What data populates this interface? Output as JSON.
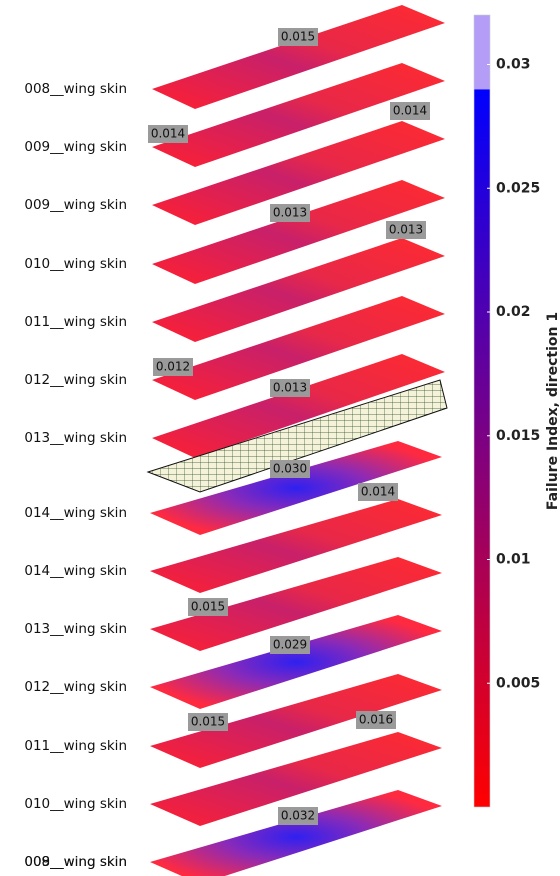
{
  "layers": [
    {
      "label": "008__wing skin",
      "annotation": "0.015"
    },
    {
      "label": "009__wing skin",
      "annotation": "0.014"
    },
    {
      "label": "009__wing skin",
      "annotation": "0.014"
    },
    {
      "label": "010__wing skin",
      "annotation": "0.013"
    },
    {
      "label": "011__wing skin",
      "annotation": "0.013"
    },
    {
      "label": "012__wing skin",
      "annotation": "0.012"
    },
    {
      "label": "013__wing skin",
      "annotation": "0.013"
    },
    {
      "label": "014__wing skin",
      "annotation": "0.030"
    },
    {
      "label": "014__wing skin",
      "annotation": "0.014"
    },
    {
      "label": "013__wing skin",
      "annotation": "0.015"
    },
    {
      "label": "012__wing skin",
      "annotation": "0.029"
    },
    {
      "label": "011__wing skin",
      "annotation": "0.015"
    },
    {
      "label": "010__wing skin",
      "annotation": "0.016"
    },
    {
      "label": "009__wing skin",
      "annotation": "0.032"
    }
  ],
  "bottom_label": "008__wing skin",
  "colorbar": {
    "label": "Failure Index, direction 1",
    "lim": [
      0,
      0.032
    ],
    "ticks": [
      0.005,
      0.01,
      0.015,
      0.02,
      0.025,
      0.03
    ],
    "over_from": 0.029,
    "low_color": "#ff0000",
    "high_color": "#0000ff",
    "over_color": "#b39df7"
  }
}
